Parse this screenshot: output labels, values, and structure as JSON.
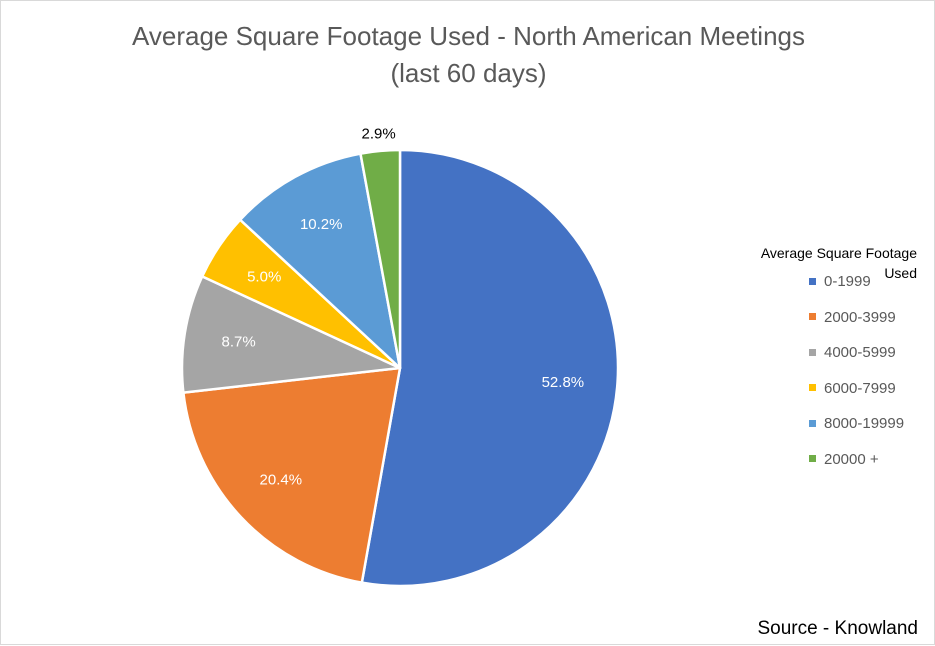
{
  "title_line1": "Average Square Footage Used - North American Meetings",
  "title_line2": "(last 60 days)",
  "source": "Source - Knowland",
  "chart_data": {
    "type": "pie",
    "title": "Average Square Footage Used - North American Meetings (last 60 days)",
    "legend_title": "Average Square Footage Used",
    "legend_position": "right",
    "slices": [
      {
        "label": "0-1999",
        "value": 52.8,
        "display": "52.8%",
        "color": "#4472C4",
        "label_color": "#ffffff"
      },
      {
        "label": "2000-3999",
        "value": 20.4,
        "display": "20.4%",
        "color": "#ED7D31",
        "label_color": "#ffffff"
      },
      {
        "label": "4000-5999",
        "value": 8.7,
        "display": "8.7%",
        "color": "#A5A5A5",
        "label_color": "#ffffff"
      },
      {
        "label": "6000-7999",
        "value": 5.0,
        "display": "5.0%",
        "color": "#FFC000",
        "label_color": "#ffffff"
      },
      {
        "label": "8000-19999",
        "value": 10.2,
        "display": "10.2%",
        "color": "#5B9BD5",
        "label_color": "#ffffff"
      },
      {
        "label": "20000 +",
        "value": 2.9,
        "display": "2.9%",
        "color": "#70AD47",
        "label_color": "#000000"
      }
    ]
  }
}
